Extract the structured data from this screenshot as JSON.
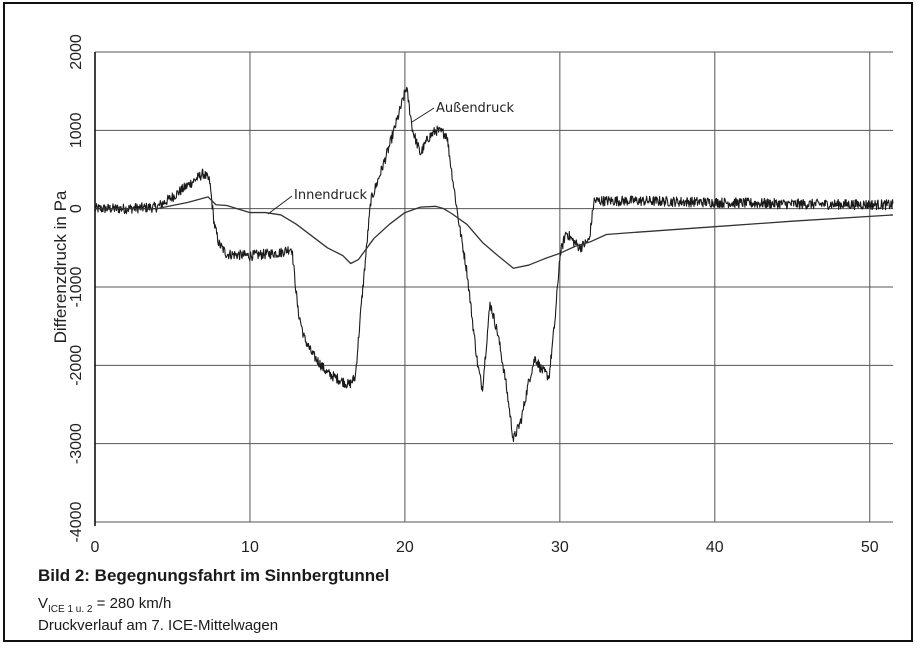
{
  "caption": {
    "title": "Bild 2: Begegnungsfahrt im Sinnbergtunnel",
    "speed_symbol": "V",
    "speed_subscript": "ICE 1 u. 2",
    "speed_value": "= 280 km/h",
    "line2": "Druckverlauf am 7. ICE-Mittelwagen"
  },
  "chart_data": {
    "type": "line",
    "title": "",
    "xlabel": "",
    "ylabel": "Differenzdruck in Pa",
    "xlim": [
      0,
      51.5
    ],
    "ylim": [
      -4000,
      2000
    ],
    "xticks": [
      0,
      10,
      20,
      30,
      40,
      50
    ],
    "yticks": [
      -4000,
      -3000,
      -2000,
      -1000,
      0,
      1000,
      2000
    ],
    "grid": true,
    "annotations": [
      {
        "text": "Außendruck",
        "series": "Außendruck"
      },
      {
        "text": "Innendruck",
        "series": "Innendruck"
      }
    ],
    "series": [
      {
        "name": "Außendruck",
        "color": "#1a1a1a",
        "noisy": true,
        "x": [
          0,
          2,
          4,
          5,
          6,
          7,
          7.4,
          7.7,
          8,
          8.5,
          10,
          12,
          12.7,
          13.1,
          13.5,
          14,
          15,
          16.4,
          16.8,
          17.2,
          17.8,
          18.5,
          19,
          19.6,
          20.1,
          20.5,
          21,
          21.5,
          22,
          22.7,
          23,
          23.5,
          24,
          24.4,
          24.7,
          25,
          25.5,
          26,
          26.5,
          27,
          27.5,
          28,
          28.4,
          28.8,
          29.3,
          29.7,
          30,
          30.4,
          30.8,
          31.3,
          31.9,
          32.2,
          35,
          40,
          45,
          51.5
        ],
        "y": [
          0,
          0,
          20,
          150,
          300,
          450,
          350,
          -200,
          -450,
          -580,
          -600,
          -560,
          -500,
          -1300,
          -1650,
          -1850,
          -2100,
          -2250,
          -2150,
          -1200,
          100,
          500,
          800,
          1200,
          1550,
          1000,
          700,
          900,
          1000,
          950,
          500,
          -200,
          -800,
          -1500,
          -2000,
          -2300,
          -1200,
          -1600,
          -2200,
          -2950,
          -2700,
          -2200,
          -1900,
          -2050,
          -2150,
          -1400,
          -600,
          -300,
          -400,
          -500,
          -400,
          100,
          100,
          80,
          60,
          50
        ]
      },
      {
        "name": "Innendruck",
        "color": "#333333",
        "noisy": false,
        "x": [
          0,
          4,
          6,
          7.3,
          7.8,
          8.5,
          10,
          11,
          12,
          13,
          14,
          15,
          16,
          16.5,
          17,
          18,
          19,
          20,
          21,
          22,
          22.5,
          23,
          24,
          25,
          26,
          27,
          28,
          29,
          30,
          31,
          32,
          33,
          35,
          40,
          45,
          51.5
        ],
        "y": [
          0,
          0,
          80,
          150,
          50,
          40,
          -50,
          -50,
          -80,
          -200,
          -350,
          -500,
          -600,
          -700,
          -650,
          -380,
          -200,
          -50,
          20,
          30,
          0,
          -60,
          -200,
          -430,
          -600,
          -760,
          -720,
          -640,
          -570,
          -480,
          -420,
          -330,
          -300,
          -230,
          -160,
          -80
        ]
      }
    ]
  }
}
